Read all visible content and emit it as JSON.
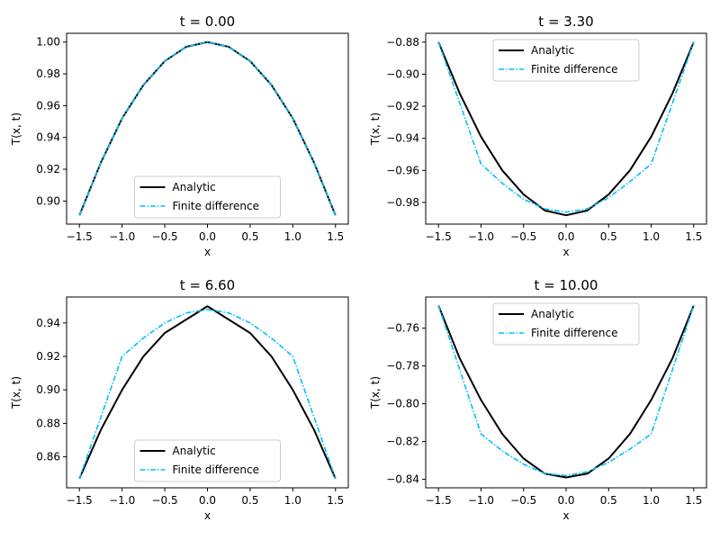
{
  "chart_data": [
    {
      "type": "line",
      "title": "t = 0.00",
      "xlabel": "x",
      "ylabel": "T(x, t)",
      "xlim": [
        -1.65,
        1.65
      ],
      "ylim": [
        0.8855,
        1.0055
      ],
      "xticks": [
        -1.5,
        -1.0,
        -0.5,
        0.0,
        0.5,
        1.0,
        1.5
      ],
      "xtick_labels": [
        "−1.5",
        "−1.0",
        "−0.5",
        "0.0",
        "0.5",
        "1.0",
        "1.5"
      ],
      "yticks": [
        0.9,
        0.92,
        0.94,
        0.96,
        0.98,
        1.0
      ],
      "ytick_labels": [
        "0.90",
        "0.92",
        "0.94",
        "0.96",
        "0.98",
        "1.00"
      ],
      "grid": false,
      "legend": "lower center",
      "series": [
        {
          "name": "Analytic",
          "color": "#000000",
          "style": "solid",
          "x": [
            -1.5,
            -1.25,
            -1.0,
            -0.75,
            -0.5,
            -0.25,
            0.0,
            0.25,
            0.5,
            0.75,
            1.0,
            1.25,
            1.5
          ],
          "y": [
            0.891,
            0.924,
            0.952,
            0.973,
            0.988,
            0.997,
            1.0,
            0.997,
            0.988,
            0.973,
            0.952,
            0.924,
            0.891
          ]
        },
        {
          "name": "Finite difference",
          "color": "#00BFFF",
          "style": "dashdot",
          "x": [
            -1.5,
            -1.25,
            -1.0,
            -0.75,
            -0.5,
            -0.25,
            0.0,
            0.25,
            0.5,
            0.75,
            1.0,
            1.25,
            1.5
          ],
          "y": [
            0.891,
            0.924,
            0.952,
            0.973,
            0.988,
            0.997,
            1.0,
            0.997,
            0.988,
            0.973,
            0.952,
            0.924,
            0.891
          ]
        }
      ]
    },
    {
      "type": "line",
      "title": "t = 3.30",
      "xlabel": "x",
      "ylabel": "T(x, t)",
      "xlim": [
        -1.65,
        1.65
      ],
      "ylim": [
        -0.9935,
        -0.8745
      ],
      "xticks": [
        -1.5,
        -1.0,
        -0.5,
        0.0,
        0.5,
        1.0,
        1.5
      ],
      "xtick_labels": [
        "−1.5",
        "−1.0",
        "−0.5",
        "0.0",
        "0.5",
        "1.0",
        "1.5"
      ],
      "yticks": [
        -0.98,
        -0.96,
        -0.94,
        -0.92,
        -0.9,
        -0.88
      ],
      "ytick_labels": [
        "−0.98",
        "−0.96",
        "−0.94",
        "−0.92",
        "−0.90",
        "−0.88"
      ],
      "grid": false,
      "legend": "upper center",
      "series": [
        {
          "name": "Analytic",
          "color": "#000000",
          "style": "solid",
          "x": [
            -1.5,
            -1.25,
            -1.0,
            -0.75,
            -0.5,
            -0.25,
            0.0,
            0.25,
            0.5,
            0.75,
            1.0,
            1.25,
            1.5
          ],
          "y": [
            -0.88,
            -0.912,
            -0.939,
            -0.96,
            -0.975,
            -0.985,
            -0.988,
            -0.985,
            -0.975,
            -0.96,
            -0.939,
            -0.912,
            -0.88
          ]
        },
        {
          "name": "Finite difference",
          "color": "#00BFFF",
          "style": "dashdot",
          "x": [
            -1.5,
            -1.0,
            -0.75,
            -0.5,
            -0.25,
            0.0,
            0.25,
            0.5,
            0.75,
            1.0,
            1.5
          ],
          "y": [
            -0.88,
            -0.956,
            -0.968,
            -0.978,
            -0.984,
            -0.986,
            -0.984,
            -0.977,
            -0.967,
            -0.956,
            -0.88
          ]
        }
      ]
    },
    {
      "type": "line",
      "title": "t = 6.60",
      "xlabel": "x",
      "ylabel": "T(x, t)",
      "xlim": [
        -1.65,
        1.65
      ],
      "ylim": [
        0.8415,
        0.9555
      ],
      "xticks": [
        -1.5,
        -1.0,
        -0.5,
        0.0,
        0.5,
        1.0,
        1.5
      ],
      "xtick_labels": [
        "−1.5",
        "−1.0",
        "−0.5",
        "0.0",
        "0.5",
        "1.0",
        "1.5"
      ],
      "yticks": [
        0.86,
        0.88,
        0.9,
        0.92,
        0.94
      ],
      "ytick_labels": [
        "0.86",
        "0.88",
        "0.90",
        "0.92",
        "0.94"
      ],
      "grid": false,
      "legend": "lower center",
      "series": [
        {
          "name": "Analytic",
          "color": "#000000",
          "style": "solid",
          "x": [
            -1.5,
            -1.25,
            -1.0,
            -0.75,
            -0.5,
            -0.25,
            0.0,
            0.25,
            0.5,
            0.75,
            1.0,
            1.25,
            1.5
          ],
          "y": [
            0.847,
            0.876,
            0.9,
            0.92,
            0.934,
            0.942,
            0.95,
            0.942,
            0.934,
            0.92,
            0.9,
            0.876,
            0.847
          ]
        },
        {
          "name": "Finite difference",
          "color": "#00BFFF",
          "style": "dashdot",
          "x": [
            -1.5,
            -1.0,
            -0.75,
            -0.5,
            -0.25,
            0.0,
            0.25,
            0.5,
            0.75,
            1.0,
            1.5
          ],
          "y": [
            0.847,
            0.92,
            0.931,
            0.94,
            0.946,
            0.948,
            0.946,
            0.94,
            0.931,
            0.92,
            0.847
          ]
        }
      ]
    },
    {
      "type": "line",
      "title": "t = 10.00",
      "xlabel": "x",
      "ylabel": "T(x, t)",
      "xlim": [
        -1.65,
        1.65
      ],
      "ylim": [
        -0.8445,
        -0.7435
      ],
      "xticks": [
        -1.5,
        -1.0,
        -0.5,
        0.0,
        0.5,
        1.0,
        1.5
      ],
      "xtick_labels": [
        "−1.5",
        "−1.0",
        "−0.5",
        "0.0",
        "0.5",
        "1.0",
        "1.5"
      ],
      "yticks": [
        -0.84,
        -0.82,
        -0.8,
        -0.78,
        -0.76
      ],
      "ytick_labels": [
        "−0.84",
        "−0.82",
        "−0.80",
        "−0.78",
        "−0.76"
      ],
      "grid": false,
      "legend": "upper center",
      "series": [
        {
          "name": "Analytic",
          "color": "#000000",
          "style": "solid",
          "x": [
            -1.5,
            -1.25,
            -1.0,
            -0.75,
            -0.5,
            -0.25,
            0.0,
            0.25,
            0.5,
            0.75,
            1.0,
            1.25,
            1.5
          ],
          "y": [
            -0.748,
            -0.776,
            -0.798,
            -0.816,
            -0.829,
            -0.837,
            -0.839,
            -0.837,
            -0.829,
            -0.816,
            -0.798,
            -0.776,
            -0.748
          ]
        },
        {
          "name": "Finite difference",
          "color": "#00BFFF",
          "style": "dashdot",
          "x": [
            -1.5,
            -1.0,
            -0.75,
            -0.5,
            -0.25,
            0.0,
            0.25,
            0.5,
            0.75,
            1.0,
            1.5
          ],
          "y": [
            -0.748,
            -0.816,
            -0.825,
            -0.832,
            -0.837,
            -0.838,
            -0.836,
            -0.831,
            -0.824,
            -0.816,
            -0.748
          ]
        }
      ]
    }
  ]
}
